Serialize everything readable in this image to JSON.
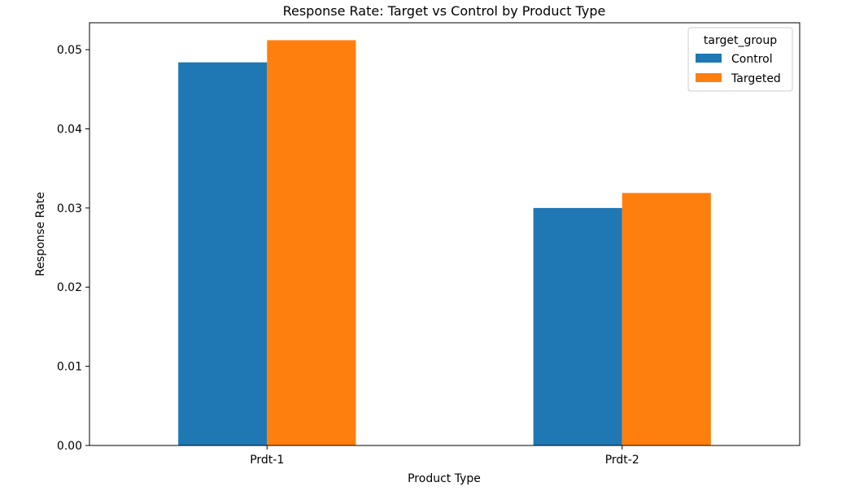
{
  "chart_data": {
    "type": "bar",
    "title": "Response Rate: Target vs Control by Product Type",
    "xlabel": "Product Type",
    "ylabel": "Response Rate",
    "categories": [
      "Prdt-1",
      "Prdt-2"
    ],
    "ylim": [
      0,
      0.0534
    ],
    "yticks": [
      0.0,
      0.01,
      0.02,
      0.03,
      0.04,
      0.05
    ],
    "ytick_labels": [
      "0.00",
      "0.01",
      "0.02",
      "0.03",
      "0.04",
      "0.05"
    ],
    "grid": false,
    "legend": {
      "title": "target_group",
      "placement": "top-right"
    },
    "series": [
      {
        "name": "Control",
        "values": [
          0.0484,
          0.03
        ],
        "color": "#1f77b4"
      },
      {
        "name": "Targeted",
        "values": [
          0.0512,
          0.0319
        ],
        "color": "#ff7f0e"
      }
    ]
  }
}
